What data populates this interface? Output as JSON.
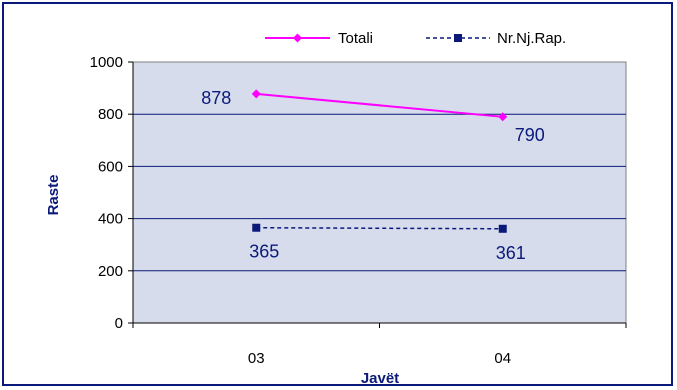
{
  "chart_data": {
    "type": "line",
    "categories": [
      "03",
      "04"
    ],
    "series": [
      {
        "name": "Totali",
        "values": [
          878,
          790
        ],
        "color": "#ff00ff",
        "line_style": "solid",
        "marker": "diamond",
        "label_position": [
          "left",
          "below-right"
        ]
      },
      {
        "name": "Nr.Nj.Rap.",
        "values": [
          365,
          361
        ],
        "color": "#0b1a7a",
        "line_style": "dashed",
        "marker": "square",
        "label_position": [
          "below",
          "below"
        ]
      }
    ],
    "xlabel": "Javët",
    "ylabel": "Raste",
    "ylim": [
      0,
      1000
    ],
    "yticks": [
      0,
      200,
      400,
      600,
      800,
      1000
    ],
    "grid": true,
    "legend_position": "top",
    "plot_background": "#d6dcec",
    "frame_color": "#0b1a7a"
  }
}
